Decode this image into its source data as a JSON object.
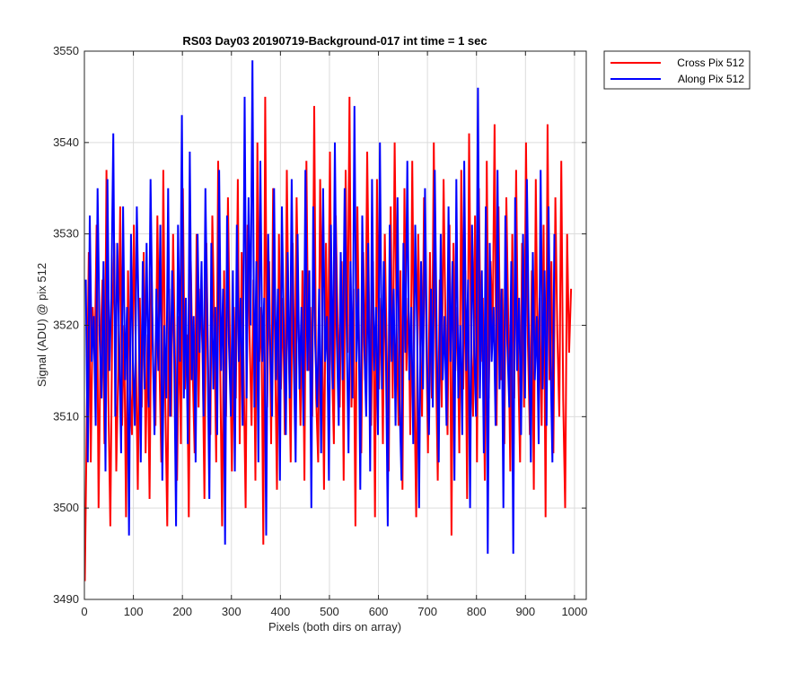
{
  "chart_data": {
    "type": "line",
    "title": "RS03 Day03 20190719-Background-017 int time = 1 sec",
    "xlabel": "Pixels (both dirs on array)",
    "ylabel": "Signal (ADU) @ pix 512",
    "xlim": [
      0,
      1024
    ],
    "ylim": [
      3490,
      3550
    ],
    "xticks": [
      0,
      100,
      200,
      300,
      400,
      500,
      600,
      700,
      800,
      900,
      1000
    ],
    "yticks": [
      3490,
      3500,
      3510,
      3520,
      3530,
      3540,
      3550
    ],
    "grid": true,
    "legend_position": "outside-top-right",
    "series": [
      {
        "name": "Cross Pix 512",
        "color": "#ff0000",
        "sampling": "every 4th pixel (approximate, noise trace)",
        "x_start": 1,
        "x_step": 4,
        "y": [
          3492,
          3510,
          3528,
          3505,
          3522,
          3516,
          3531,
          3500,
          3518,
          3525,
          3507,
          3537,
          3512,
          3498,
          3521,
          3529,
          3504,
          3515,
          3533,
          3509,
          3520,
          3499,
          3526,
          3513,
          3508,
          3531,
          3517,
          3502,
          3523,
          3511,
          3528,
          3506,
          3519,
          3501,
          3526,
          3514,
          3509,
          3532,
          3516,
          3505,
          3537,
          3512,
          3498,
          3524,
          3510,
          3530,
          3516,
          3503,
          3521,
          3507,
          3535,
          3513,
          3519,
          3499,
          3527,
          3515,
          3506,
          3530,
          3511,
          3524,
          3517,
          3501,
          3529,
          3514,
          3508,
          3532,
          3520,
          3505,
          3538,
          3516,
          3498,
          3526,
          3510,
          3534,
          3518,
          3504,
          3522,
          3512,
          3536,
          3507,
          3528,
          3515,
          3500,
          3531,
          3519,
          3509,
          3525,
          3503,
          3540,
          3516,
          3522,
          3496,
          3545,
          3511,
          3527,
          3507,
          3535,
          3517,
          3502,
          3530,
          3513,
          3523,
          3508,
          3537,
          3518,
          3505,
          3529,
          3512,
          3534,
          3520,
          3509,
          3526,
          3503,
          3538,
          3515,
          3522,
          3510,
          3544,
          3512,
          3505,
          3536,
          3521,
          3502,
          3529,
          3514,
          3539,
          3516,
          3507,
          3532,
          3520,
          3511,
          3527,
          3503,
          3537,
          3517,
          3545,
          3511,
          3524,
          3498,
          3533,
          3516,
          3506,
          3528,
          3514,
          3539,
          3521,
          3509,
          3527,
          3499,
          3536,
          3513,
          3523,
          3507,
          3530,
          3517,
          3504,
          3533,
          3512,
          3540,
          3520,
          3509,
          3526,
          3502,
          3535,
          3515,
          3523,
          3508,
          3538,
          3514,
          3499,
          3530,
          3518,
          3510,
          3534,
          3521,
          3506,
          3528,
          3512,
          3540,
          3517,
          3503,
          3525,
          3511,
          3536,
          3519,
          3508,
          3531,
          3497,
          3529,
          3515,
          3522,
          3506,
          3537,
          3513,
          3526,
          3501,
          3541,
          3518,
          3510,
          3532,
          3505,
          3535,
          3516,
          3523,
          3503,
          3538,
          3512,
          3527,
          3519,
          3542,
          3509,
          3533,
          3514,
          3524,
          3507,
          3534,
          3520,
          3504,
          3530,
          3512,
          3537,
          3516,
          3505,
          3529,
          3511,
          3540,
          3518,
          3508,
          3526,
          3502,
          3536,
          3515,
          3523,
          3509,
          3531,
          3499,
          3542,
          3514,
          3527,
          3506,
          3534,
          3519,
          3510,
          3538,
          3512,
          3500,
          3530,
          3517,
          3524
        ],
        "stats": {
          "min": 3492,
          "max": 3545
        }
      },
      {
        "name": "Along Pix 512",
        "color": "#0000ff",
        "sampling": "every 4th pixel (approximate, noise trace)",
        "x_start": 3,
        "x_step": 4,
        "y": [
          3525,
          3505,
          3532,
          3516,
          3521,
          3509,
          3535,
          3519,
          3512,
          3527,
          3504,
          3536,
          3515,
          3523,
          3541,
          3510,
          3529,
          3518,
          3506,
          3533,
          3514,
          3522,
          3497,
          3530,
          3516,
          3509,
          3533,
          3520,
          3505,
          3527,
          3513,
          3529,
          3511,
          3536,
          3519,
          3508,
          3524,
          3515,
          3531,
          3503,
          3520,
          3512,
          3535,
          3510,
          3526,
          3518,
          3498,
          3531,
          3516,
          3543,
          3512,
          3523,
          3507,
          3539,
          3514,
          3521,
          3505,
          3530,
          3517,
          3527,
          3510,
          3535,
          3519,
          3501,
          3529,
          3513,
          3522,
          3508,
          3537,
          3515,
          3524,
          3496,
          3532,
          3518,
          3510,
          3526,
          3504,
          3531,
          3516,
          3523,
          3509,
          3545,
          3512,
          3534,
          3520,
          3549,
          3511,
          3527,
          3505,
          3538,
          3516,
          3523,
          3497,
          3530,
          3518,
          3510,
          3535,
          3514,
          3524,
          3503,
          3533,
          3519,
          3508,
          3528,
          3512,
          3536,
          3517,
          3505,
          3530,
          3513,
          3522,
          3509,
          3537,
          3515,
          3526,
          3500,
          3533,
          3518,
          3511,
          3524,
          3506,
          3535,
          3516,
          3521,
          3503,
          3531,
          3513,
          3540,
          3519,
          3509,
          3528,
          3514,
          3535,
          3520,
          3506,
          3527,
          3512,
          3544,
          3516,
          3524,
          3502,
          3532,
          3518,
          3510,
          3529,
          3504,
          3536,
          3515,
          3522,
          3508,
          3540,
          3513,
          3527,
          3518,
          3498,
          3531,
          3516,
          3524,
          3509,
          3534,
          3512,
          3503,
          3529,
          3517,
          3538,
          3514,
          3522,
          3507,
          3531,
          3519,
          3500,
          3527,
          3513,
          3535,
          3516,
          3508,
          3524,
          3511,
          3537,
          3518,
          3505,
          3530,
          3514,
          3521,
          3509,
          3533,
          3516,
          3527,
          3503,
          3536,
          3512,
          3520,
          3508,
          3538,
          3515,
          3525,
          3500,
          3531,
          3518,
          3510,
          3546,
          3512,
          3526,
          3506,
          3533,
          3495,
          3529,
          3516,
          3522,
          3509,
          3537,
          3513,
          3524,
          3500,
          3532,
          3518,
          3511,
          3527,
          3495,
          3534,
          3515,
          3523,
          3508,
          3530,
          3512,
          3536,
          3519,
          3505,
          3528,
          3514,
          3521,
          3507,
          3537,
          3513,
          3526,
          3509,
          3533,
          3517,
          3505,
          3530
        ],
        "stats": {
          "min": 3495,
          "max": 3549
        }
      }
    ]
  }
}
